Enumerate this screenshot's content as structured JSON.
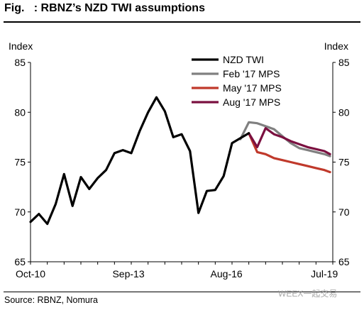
{
  "figure": {
    "title": "Fig.   : RBNZ’s NZD TWI assumptions",
    "source": "Source: RBNZ, Nomura",
    "watermark": "WEEX一起交易"
  },
  "chart_data": {
    "type": "line",
    "title": "Fig.   : RBNZ’s NZD TWI assumptions",
    "ylabel_left": "Index",
    "ylabel_right": "Index",
    "ylim": [
      65,
      85
    ],
    "yticks": [
      65,
      70,
      75,
      80,
      85
    ],
    "xlim": [
      "2010-10",
      "2019-10"
    ],
    "xticks": [
      "Oct-10",
      "Sep-13",
      "Aug-16",
      "Jul-19"
    ],
    "xtick_dates": [
      "2010-10",
      "2013-09",
      "2016-08",
      "2019-07"
    ],
    "grid": false,
    "legend_position": "top-right",
    "series": [
      {
        "name": "NZD TWI",
        "color": "#000000",
        "points": [
          [
            "2010-10",
            69.0
          ],
          [
            "2011-01",
            69.8
          ],
          [
            "2011-04",
            68.8
          ],
          [
            "2011-07",
            70.8
          ],
          [
            "2011-10",
            73.8
          ],
          [
            "2012-01",
            70.6
          ],
          [
            "2012-04",
            73.5
          ],
          [
            "2012-07",
            72.3
          ],
          [
            "2012-10",
            73.4
          ],
          [
            "2013-01",
            74.2
          ],
          [
            "2013-04",
            75.9
          ],
          [
            "2013-07",
            76.2
          ],
          [
            "2013-10",
            75.9
          ],
          [
            "2014-01",
            78.1
          ],
          [
            "2014-04",
            80.0
          ],
          [
            "2014-07",
            81.5
          ],
          [
            "2014-10",
            80.1
          ],
          [
            "2015-01",
            77.5
          ],
          [
            "2015-04",
            77.8
          ],
          [
            "2015-07",
            76.1
          ],
          [
            "2015-10",
            69.9
          ],
          [
            "2016-01",
            72.1
          ],
          [
            "2016-04",
            72.2
          ],
          [
            "2016-07",
            73.6
          ],
          [
            "2016-10",
            76.9
          ],
          [
            "2017-01",
            77.4
          ],
          [
            "2017-04",
            77.9
          ]
        ]
      },
      {
        "name": "Feb '17 MPS",
        "color": "#808080",
        "points": [
          [
            "2017-01",
            77.3
          ],
          [
            "2017-04",
            79.0
          ],
          [
            "2017-07",
            78.9
          ],
          [
            "2017-10",
            78.6
          ],
          [
            "2018-01",
            78.3
          ],
          [
            "2018-04",
            77.6
          ],
          [
            "2018-07",
            76.9
          ],
          [
            "2018-10",
            76.4
          ],
          [
            "2019-01",
            76.2
          ],
          [
            "2019-04",
            76.0
          ],
          [
            "2019-07",
            75.8
          ],
          [
            "2019-09",
            75.6
          ]
        ]
      },
      {
        "name": "May '17 MPS",
        "color": "#C0392B",
        "points": [
          [
            "2017-04",
            77.9
          ],
          [
            "2017-07",
            76.0
          ],
          [
            "2017-10",
            75.8
          ],
          [
            "2018-01",
            75.4
          ],
          [
            "2018-04",
            75.2
          ],
          [
            "2018-07",
            75.0
          ],
          [
            "2018-10",
            74.8
          ],
          [
            "2019-01",
            74.6
          ],
          [
            "2019-04",
            74.4
          ],
          [
            "2019-07",
            74.2
          ],
          [
            "2019-09",
            74.0
          ]
        ]
      },
      {
        "name": "Aug '17 MPS",
        "color": "#7B1040",
        "points": [
          [
            "2017-04",
            77.9
          ],
          [
            "2017-07",
            76.5
          ],
          [
            "2017-10",
            78.4
          ],
          [
            "2018-01",
            77.8
          ],
          [
            "2018-04",
            77.5
          ],
          [
            "2018-07",
            77.1
          ],
          [
            "2018-10",
            76.8
          ],
          [
            "2019-01",
            76.5
          ],
          [
            "2019-04",
            76.3
          ],
          [
            "2019-07",
            76.1
          ],
          [
            "2019-09",
            75.8
          ]
        ]
      }
    ]
  }
}
